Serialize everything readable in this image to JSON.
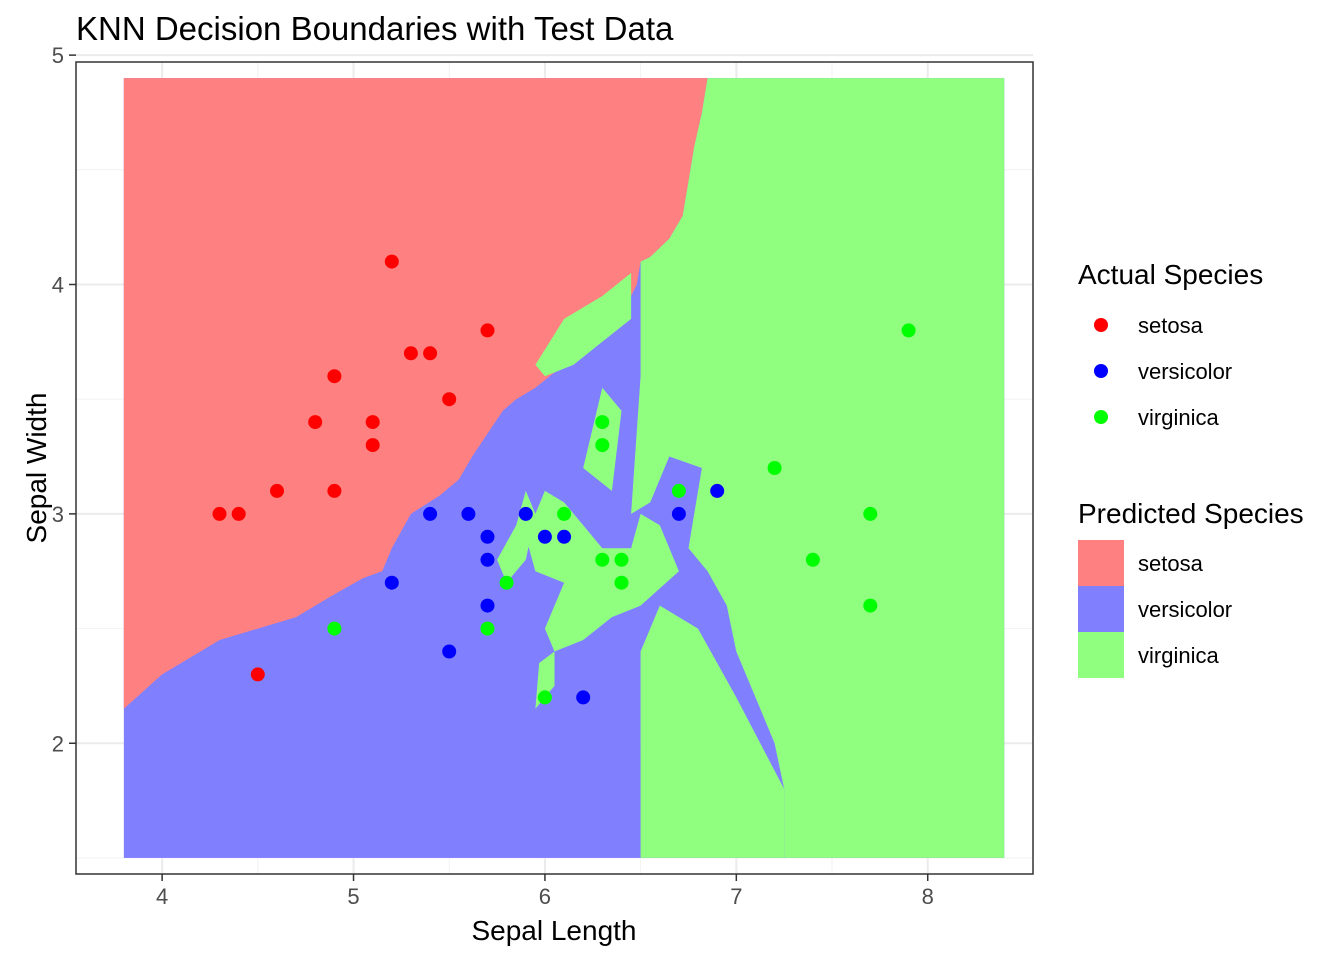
{
  "chart_data": {
    "type": "scatter",
    "title": "KNN Decision Boundaries with Test Data",
    "xlabel": "Sepal Length",
    "ylabel": "Sepal Width",
    "xlim": [
      3.55,
      8.55
    ],
    "ylim": [
      1.43,
      4.97
    ],
    "x_ticks": [
      4,
      5,
      6,
      7,
      8
    ],
    "y_ticks": [
      2,
      3,
      4,
      5
    ],
    "grid": true,
    "legend_position": "right",
    "legends": {
      "actual": {
        "title": "Actual Species",
        "items": [
          {
            "label": "setosa",
            "color": "#ff0000"
          },
          {
            "label": "versicolor",
            "color": "#0000ff"
          },
          {
            "label": "virginica",
            "color": "#00ff00"
          }
        ]
      },
      "predicted": {
        "title": "Predicted Species",
        "items": [
          {
            "label": "setosa",
            "color": "#ff8080"
          },
          {
            "label": "versicolor",
            "color": "#8080ff"
          },
          {
            "label": "virginica",
            "color": "#90ff80"
          }
        ]
      }
    },
    "decision_regions": [
      {
        "species": "setosa",
        "color": "#ff8080",
        "polygon": [
          [
            3.8,
            4.9
          ],
          [
            6.85,
            4.9
          ],
          [
            6.82,
            4.75
          ],
          [
            6.78,
            4.6
          ],
          [
            6.75,
            4.45
          ],
          [
            6.72,
            4.3
          ],
          [
            6.65,
            4.2
          ],
          [
            6.55,
            4.12
          ],
          [
            6.5,
            4.1
          ],
          [
            6.48,
            4.0
          ],
          [
            6.42,
            3.9
          ],
          [
            6.3,
            3.82
          ],
          [
            6.2,
            3.75
          ],
          [
            6.1,
            3.65
          ],
          [
            5.95,
            3.55
          ],
          [
            5.85,
            3.5
          ],
          [
            5.78,
            3.45
          ],
          [
            5.7,
            3.35
          ],
          [
            5.62,
            3.25
          ],
          [
            5.55,
            3.15
          ],
          [
            5.45,
            3.08
          ],
          [
            5.3,
            3.0
          ],
          [
            5.2,
            2.85
          ],
          [
            5.15,
            2.75
          ],
          [
            5.05,
            2.72
          ],
          [
            4.9,
            2.65
          ],
          [
            4.7,
            2.55
          ],
          [
            4.5,
            2.5
          ],
          [
            4.3,
            2.45
          ],
          [
            4.2,
            2.4
          ],
          [
            4.0,
            2.3
          ],
          [
            3.8,
            2.15
          ]
        ]
      },
      {
        "species": "virginica",
        "color": "#90ff80",
        "polygon": [
          [
            6.85,
            4.9
          ],
          [
            8.4,
            4.9
          ],
          [
            8.4,
            1.5
          ],
          [
            7.25,
            1.5
          ],
          [
            7.25,
            1.8
          ],
          [
            7.2,
            2.0
          ],
          [
            7.1,
            2.2
          ],
          [
            7.0,
            2.4
          ],
          [
            6.95,
            2.6
          ],
          [
            6.85,
            2.75
          ],
          [
            6.75,
            2.85
          ],
          [
            6.78,
            3.0
          ],
          [
            6.82,
            3.2
          ],
          [
            6.65,
            3.25
          ],
          [
            6.55,
            3.05
          ],
          [
            6.45,
            3.0
          ],
          [
            6.5,
            3.6
          ],
          [
            6.5,
            4.1
          ],
          [
            6.55,
            4.12
          ],
          [
            6.65,
            4.2
          ],
          [
            6.72,
            4.3
          ],
          [
            6.75,
            4.45
          ],
          [
            6.78,
            4.6
          ],
          [
            6.82,
            4.75
          ]
        ]
      },
      {
        "species": "virginica",
        "color": "#90ff80",
        "polygon": [
          [
            6.5,
            1.5
          ],
          [
            7.25,
            1.5
          ],
          [
            7.25,
            1.8
          ],
          [
            7.0,
            2.2
          ],
          [
            6.8,
            2.5
          ],
          [
            6.6,
            2.6
          ],
          [
            6.5,
            2.4
          ]
        ]
      },
      {
        "species": "virginica",
        "color": "#90ff80",
        "polygon": [
          [
            5.9,
            2.9
          ],
          [
            6.0,
            3.1
          ],
          [
            6.1,
            3.05
          ],
          [
            6.2,
            2.95
          ],
          [
            6.3,
            2.85
          ],
          [
            6.45,
            2.85
          ],
          [
            6.5,
            3.0
          ],
          [
            6.6,
            2.95
          ],
          [
            6.7,
            2.75
          ],
          [
            6.5,
            2.6
          ],
          [
            6.35,
            2.55
          ],
          [
            6.2,
            2.45
          ],
          [
            6.05,
            2.4
          ],
          [
            6.0,
            2.5
          ],
          [
            6.1,
            2.7
          ],
          [
            5.95,
            2.75
          ]
        ]
      },
      {
        "species": "virginica",
        "color": "#90ff80",
        "polygon": [
          [
            5.75,
            2.8
          ],
          [
            5.85,
            2.95
          ],
          [
            5.9,
            3.1
          ],
          [
            5.95,
            3.0
          ],
          [
            5.9,
            2.8
          ],
          [
            5.8,
            2.7
          ]
        ]
      },
      {
        "species": "virginica",
        "color": "#90ff80",
        "polygon": [
          [
            6.2,
            3.2
          ],
          [
            6.3,
            3.55
          ],
          [
            6.4,
            3.45
          ],
          [
            6.35,
            3.1
          ]
        ]
      },
      {
        "species": "virginica",
        "color": "#90ff80",
        "polygon": [
          [
            5.95,
            3.65
          ],
          [
            6.1,
            3.85
          ],
          [
            6.3,
            3.95
          ],
          [
            6.45,
            4.05
          ],
          [
            6.45,
            3.85
          ],
          [
            6.3,
            3.75
          ],
          [
            6.15,
            3.65
          ],
          [
            6.0,
            3.6
          ]
        ]
      },
      {
        "species": "virginica",
        "color": "#90ff80",
        "polygon": [
          [
            5.95,
            2.15
          ],
          [
            6.05,
            2.25
          ],
          [
            6.05,
            2.4
          ],
          [
            5.97,
            2.35
          ]
        ]
      }
    ],
    "series": [
      {
        "name": "setosa",
        "color": "#ff0000",
        "points": [
          [
            4.3,
            3.0
          ],
          [
            4.4,
            3.0
          ],
          [
            4.5,
            2.3
          ],
          [
            4.6,
            3.1
          ],
          [
            4.8,
            3.4
          ],
          [
            4.9,
            3.6
          ],
          [
            4.9,
            3.1
          ],
          [
            5.1,
            3.4
          ],
          [
            5.1,
            3.3
          ],
          [
            5.2,
            4.1
          ],
          [
            5.3,
            3.7
          ],
          [
            5.4,
            3.7
          ],
          [
            5.5,
            3.5
          ],
          [
            5.7,
            3.8
          ]
        ]
      },
      {
        "name": "versicolor",
        "color": "#0000ff",
        "points": [
          [
            5.2,
            2.7
          ],
          [
            5.4,
            3.0
          ],
          [
            5.5,
            2.4
          ],
          [
            5.6,
            3.0
          ],
          [
            5.7,
            2.9
          ],
          [
            5.7,
            2.8
          ],
          [
            5.7,
            2.6
          ],
          [
            5.9,
            3.0
          ],
          [
            6.0,
            2.9
          ],
          [
            6.1,
            2.9
          ],
          [
            6.2,
            2.2
          ],
          [
            6.7,
            3.0
          ],
          [
            6.9,
            3.1
          ]
        ]
      },
      {
        "name": "virginica",
        "color": "#00ff00",
        "points": [
          [
            4.9,
            2.5
          ],
          [
            5.7,
            2.5
          ],
          [
            5.8,
            2.7
          ],
          [
            6.0,
            2.2
          ],
          [
            6.1,
            3.0
          ],
          [
            6.3,
            3.4
          ],
          [
            6.3,
            3.3
          ],
          [
            6.3,
            2.8
          ],
          [
            6.4,
            2.8
          ],
          [
            6.4,
            2.7
          ],
          [
            6.7,
            3.1
          ],
          [
            7.2,
            3.2
          ],
          [
            7.4,
            2.8
          ],
          [
            7.7,
            3.0
          ],
          [
            7.7,
            2.6
          ],
          [
            7.9,
            3.8
          ]
        ]
      }
    ]
  }
}
